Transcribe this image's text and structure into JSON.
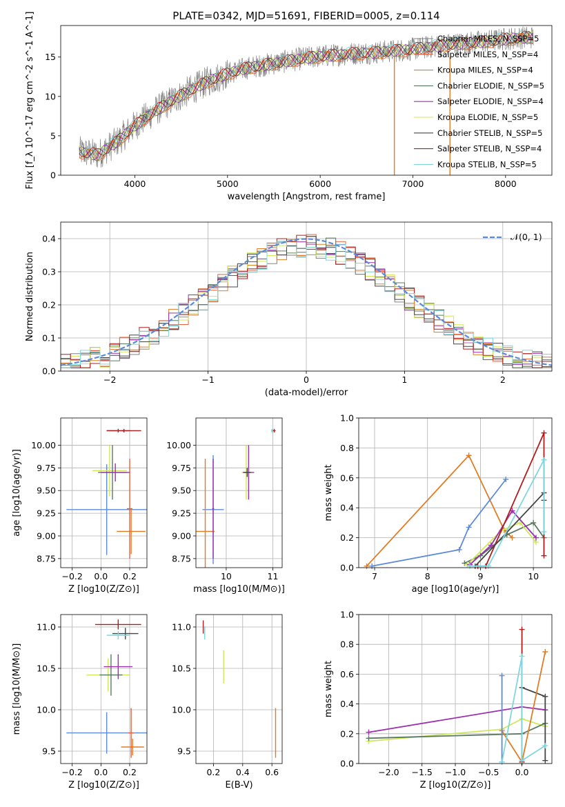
{
  "page_title": "PLATE=0342, MJD=51691, FIBERID=0005, z=0.114",
  "colors": {
    "chabrier_miles": "#808080",
    "salpeter_miles": "#e8603a",
    "kroupa_miles": "#e07b23",
    "chabrier_elodie": "#5a7a60",
    "salpeter_elodie": "#9b2fae",
    "kroupa_elodie": "#cfe85a",
    "chabrier_stelib": "#444444",
    "salpeter_stelib": "#b01c1c",
    "kroupa_stelib": "#7fd6dc",
    "normal": "#5b8ad8",
    "blue_model": "#5b8ad8"
  },
  "chart_data": [
    {
      "id": "spectrum",
      "type": "line",
      "title": "PLATE=0342, MJD=51691, FIBERID=0005, z=0.114",
      "xlabel": "wavelength [Angstrom, rest frame]",
      "ylabel": "Flux [f_λ 10^-17 erg cm^-2 s^-1 A^-1]",
      "xlim": [
        3200,
        8500
      ],
      "ylim": [
        0,
        19
      ],
      "xticks": [
        "4000",
        "5000",
        "6000",
        "7000",
        "8000"
      ],
      "yticks": [
        "0",
        "5",
        "10",
        "15"
      ],
      "legend_position": "right",
      "legend": [
        {
          "name": "Chabrier MILES, N_SSP=5",
          "color_key": "chabrier_miles"
        },
        {
          "name": "Salpeter MILES, N_SSP=4",
          "color_key": "salpeter_miles"
        },
        {
          "name": "Kroupa MILES, N_SSP=4",
          "color_key": "kroupa_miles"
        },
        {
          "name": "Chabrier ELODIE, N_SSP=5",
          "color_key": "chabrier_elodie"
        },
        {
          "name": "Salpeter ELODIE, N_SSP=4",
          "color_key": "salpeter_elodie"
        },
        {
          "name": "Kroupa ELODIE, N_SSP=5",
          "color_key": "kroupa_elodie"
        },
        {
          "name": "Chabrier STELIB, N_SSP=5",
          "color_key": "chabrier_stelib"
        },
        {
          "name": "Salpeter STELIB, N_SSP=4",
          "color_key": "salpeter_stelib"
        },
        {
          "name": "Kroupa STELIB, N_SSP=5",
          "color_key": "kroupa_stelib"
        }
      ],
      "continuum": {
        "x": [
          3400,
          3600,
          3800,
          4000,
          4200,
          4400,
          4600,
          4800,
          5000,
          5200,
          5400,
          5600,
          5800,
          6000,
          6200,
          6400,
          6600,
          6800,
          7000,
          7200,
          7400,
          7600,
          7800,
          8000,
          8200
        ],
        "y": [
          3.0,
          2.6,
          4.2,
          6.3,
          8.0,
          9.5,
          10.8,
          12.0,
          12.9,
          13.6,
          14.0,
          14.4,
          14.8,
          15.1,
          15.3,
          15.5,
          15.6,
          15.8,
          16.0,
          16.3,
          16.6,
          16.8,
          17.0,
          17.3,
          17.5
        ]
      },
      "spikes": [
        {
          "x": 6800,
          "y_low": 0
        },
        {
          "x": 7400,
          "y_low": 0
        }
      ]
    },
    {
      "id": "residuals",
      "type": "line",
      "xlabel": "(data-model)/error",
      "ylabel": "Normed distribution",
      "xlim": [
        -2.5,
        2.5
      ],
      "ylim": [
        0,
        0.45
      ],
      "xticks": [
        "−2",
        "−1",
        "0",
        "1",
        "2"
      ],
      "yticks": [
        "0.0",
        "0.1",
        "0.2",
        "0.3",
        "0.4"
      ],
      "legend_position": "top-right",
      "legend": [
        {
          "name": "𝒩(0, 1)",
          "color_key": "normal"
        }
      ],
      "bin_width": 0.1
    },
    {
      "id": "age_vs_Z",
      "type": "scatter",
      "xlabel": "Z [log10(Z/Z⊙)]",
      "ylabel": "age  [log10(age/yr)]",
      "xlim": [
        -0.28,
        0.32
      ],
      "ylim": [
        8.65,
        10.3
      ],
      "xticks": [
        "−0.2",
        "0.0",
        "0.2"
      ],
      "yticks": [
        "8.75",
        "9.00",
        "9.25",
        "9.50",
        "9.75",
        "10.00"
      ],
      "points": [
        {
          "x": 0.04,
          "y": 9.29,
          "xerr": 0.28,
          "yerr": 0.5,
          "color_key": "blue_model"
        },
        {
          "x": 0.21,
          "y": 9.05,
          "xerr": 0.1,
          "yerr": 0.25,
          "color_key": "kroupa_miles"
        },
        {
          "x": 0.2,
          "y": 9.3,
          "xerr": 0.02,
          "yerr": 0.55,
          "color_key": "salpeter_miles"
        },
        {
          "x": 0.06,
          "y": 9.72,
          "xerr": 0.12,
          "yerr": 0.28,
          "color_key": "kroupa_elodie"
        },
        {
          "x": 0.08,
          "y": 9.7,
          "xerr": 0.1,
          "yerr": 0.3,
          "color_key": "chabrier_elodie"
        },
        {
          "x": 0.1,
          "y": 9.7,
          "xerr": 0.1,
          "yerr": 0.1,
          "color_key": "salpeter_elodie"
        },
        {
          "x": 0.12,
          "y": 10.16,
          "xerr": 0.08,
          "yerr": 0.02,
          "color_key": "chabrier_stelib"
        },
        {
          "x": 0.15,
          "y": 10.16,
          "xerr": 0.06,
          "yerr": 0.01,
          "color_key": "kroupa_stelib"
        },
        {
          "x": 0.16,
          "y": 10.16,
          "xerr": 0.12,
          "yerr": 0.02,
          "color_key": "salpeter_stelib"
        }
      ]
    },
    {
      "id": "age_vs_mass",
      "type": "scatter",
      "xlabel": "mass [log10(M/M⊙)]",
      "xlim": [
        9.35,
        11.2
      ],
      "ylim": [
        8.65,
        10.3
      ],
      "xticks": [
        "10",
        "11"
      ],
      "yticks": [
        "8.75",
        "9.00",
        "9.25",
        "9.50",
        "9.75",
        "10.00"
      ],
      "points": [
        {
          "x": 9.72,
          "y": 9.29,
          "xerr": 0.23,
          "yerr": 0.6,
          "color_key": "blue_model"
        },
        {
          "x": 9.55,
          "y": 9.05,
          "xerr": 0.2,
          "yerr": 0.8,
          "color_key": "kroupa_miles"
        },
        {
          "x": 9.72,
          "y": 9.3,
          "xerr": 0.02,
          "yerr": 0.55,
          "color_key": "salpeter_elodie"
        },
        {
          "x": 10.43,
          "y": 9.7,
          "xerr": 0.1,
          "yerr": 0.3,
          "color_key": "kroupa_elodie"
        },
        {
          "x": 10.48,
          "y": 9.7,
          "xerr": 0.12,
          "yerr": 0.3,
          "color_key": "salpeter_elodie"
        },
        {
          "x": 10.45,
          "y": 9.7,
          "xerr": 0.08,
          "yerr": 0.05,
          "color_key": "chabrier_stelib"
        },
        {
          "x": 10.98,
          "y": 10.16,
          "xerr": 0.02,
          "yerr": 0.02,
          "color_key": "kroupa_stelib"
        },
        {
          "x": 11.03,
          "y": 10.16,
          "xerr": 0.03,
          "yerr": 0.02,
          "color_key": "salpeter_stelib"
        }
      ]
    },
    {
      "id": "weight_vs_age",
      "type": "line",
      "xlabel": "age  [log10(age/yr)]",
      "ylabel": "mass weight",
      "xlim": [
        6.7,
        10.35
      ],
      "ylim": [
        0,
        1
      ],
      "xticks": [
        "7",
        "8",
        "9",
        "10"
      ],
      "yticks": [
        "0.0",
        "0.2",
        "0.4",
        "0.6",
        "0.8",
        "1.0"
      ],
      "series": [
        {
          "color_key": "kroupa_miles",
          "x": [
            6.85,
            8.78,
            9.45,
            9.6
          ],
          "y": [
            0.01,
            0.75,
            0.25,
            0.2
          ]
        },
        {
          "color_key": "blue_model",
          "x": [
            6.95,
            8.6,
            8.78,
            9.48
          ],
          "y": [
            0.01,
            0.12,
            0.27,
            0.59
          ]
        },
        {
          "color_key": "chabrier_elodie",
          "x": [
            8.7,
            9.0,
            9.5,
            10.0,
            10.2
          ],
          "y": [
            0.03,
            0.08,
            0.22,
            0.3,
            0.2
          ]
        },
        {
          "color_key": "kroupa_elodie",
          "x": [
            8.75,
            9.4,
            9.75,
            10.05
          ],
          "y": [
            0.02,
            0.25,
            0.3,
            0.17
          ]
        },
        {
          "color_key": "salpeter_elodie",
          "x": [
            8.8,
            9.2,
            9.6,
            10.05
          ],
          "y": [
            0.02,
            0.15,
            0.38,
            0.2
          ]
        },
        {
          "color_key": "salpeter_stelib",
          "x": [
            8.95,
            9.1,
            10.2,
            10.2
          ],
          "y": [
            0.01,
            0.01,
            0.9,
            0.08
          ]
        },
        {
          "color_key": "chabrier_stelib",
          "x": [
            8.9,
            10.2,
            10.2
          ],
          "y": [
            0.01,
            0.5,
            0.45
          ]
        },
        {
          "color_key": "kroupa_stelib",
          "x": [
            8.8,
            9.15,
            10.2,
            10.2
          ],
          "y": [
            0.01,
            0.01,
            0.72,
            0.24
          ]
        }
      ]
    },
    {
      "id": "mass_vs_Z",
      "type": "scatter",
      "xlabel": "Z [log10(Z/Z⊙)]",
      "ylabel": "mass [log10(M/M⊙)]",
      "xlim": [
        -0.28,
        0.32
      ],
      "ylim": [
        9.35,
        11.15
      ],
      "xticks": [
        "−0.2",
        "0.0",
        "0.2"
      ],
      "yticks": [
        "9.5",
        "10.0",
        "10.5",
        "11.0"
      ],
      "points": [
        {
          "x": 0.04,
          "y": 9.72,
          "xerr": 0.28,
          "yerr": 0.25,
          "color_key": "blue_model"
        },
        {
          "x": 0.22,
          "y": 9.55,
          "xerr": 0.08,
          "yerr": 0.1,
          "color_key": "kroupa_miles"
        },
        {
          "x": 0.21,
          "y": 9.72,
          "xerr": 0.02,
          "yerr": 0.3,
          "color_key": "salpeter_miles"
        },
        {
          "x": 0.05,
          "y": 10.42,
          "xerr": 0.15,
          "yerr": 0.2,
          "color_key": "kroupa_elodie"
        },
        {
          "x": 0.07,
          "y": 10.42,
          "xerr": 0.08,
          "yerr": 0.25,
          "color_key": "chabrier_elodie"
        },
        {
          "x": 0.12,
          "y": 10.52,
          "xerr": 0.1,
          "yerr": 0.15,
          "color_key": "salpeter_elodie"
        },
        {
          "x": 0.17,
          "y": 10.92,
          "xerr": 0.09,
          "yerr": 0.07,
          "color_key": "chabrier_stelib"
        },
        {
          "x": 0.12,
          "y": 10.9,
          "xerr": 0.08,
          "yerr": 0.05,
          "color_key": "kroupa_stelib"
        },
        {
          "x": 0.12,
          "y": 11.03,
          "xerr": 0.16,
          "yerr": 0.06,
          "color_key": "salpeter_stelib"
        }
      ]
    },
    {
      "id": "mass_vs_ebv",
      "type": "scatter",
      "xlabel": "E(B-V)",
      "xlim": [
        0.08,
        0.67
      ],
      "ylim": [
        9.35,
        11.15
      ],
      "xticks": [
        "0.2",
        "0.4",
        "0.6"
      ],
      "yticks": [
        "9.5",
        "10.0",
        "10.5",
        "11.0"
      ],
      "points": [
        {
          "x": 0.625,
          "y": 9.72,
          "xerr": 0.0,
          "yerr": 0.3,
          "color_key": "kroupa_miles"
        },
        {
          "x": 0.27,
          "y": 10.52,
          "xerr": 0.0,
          "yerr": 0.2,
          "color_key": "kroupa_elodie"
        },
        {
          "x": 0.14,
          "y": 10.93,
          "xerr": 0.0,
          "yerr": 0.08,
          "color_key": "kroupa_stelib"
        },
        {
          "x": 0.13,
          "y": 11.0,
          "xerr": 0.0,
          "yerr": 0.08,
          "color_key": "salpeter_stelib"
        }
      ]
    },
    {
      "id": "weight_vs_Z",
      "type": "line",
      "xlabel": "Z [log10(Z/Z⊙)]",
      "ylabel": "mass weight",
      "xlim": [
        -2.45,
        0.45
      ],
      "ylim": [
        0,
        1
      ],
      "xticks": [
        "−2.0",
        "−1.5",
        "−1.0",
        "−0.5",
        "0.0"
      ],
      "yticks": [
        "0.0",
        "0.2",
        "0.4",
        "0.6",
        "0.8",
        "1.0"
      ],
      "series": [
        {
          "color_key": "salpeter_elodie",
          "x": [
            -2.3,
            0.0,
            0.35
          ],
          "y": [
            0.21,
            0.38,
            0.36
          ]
        },
        {
          "color_key": "kroupa_elodie",
          "x": [
            -2.3,
            -0.3,
            0.0,
            0.35
          ],
          "y": [
            0.15,
            0.23,
            0.3,
            0.25
          ]
        },
        {
          "color_key": "chabrier_elodie",
          "x": [
            -2.3,
            0.0,
            0.35
          ],
          "y": [
            0.17,
            0.2,
            0.27
          ]
        },
        {
          "color_key": "chabrier_stelib",
          "x": [
            0.0,
            0.35,
            0.35
          ],
          "y": [
            0.51,
            0.45,
            0.02
          ]
        },
        {
          "color_key": "kroupa_miles",
          "x": [
            -0.3,
            0.0,
            0.35
          ],
          "y": [
            0.22,
            0.01,
            0.75
          ]
        },
        {
          "color_key": "blue_model",
          "x": [
            -0.3,
            -0.3
          ],
          "y": [
            0.59,
            0.01
          ]
        },
        {
          "color_key": "salpeter_stelib",
          "x": [
            0.0,
            0.0
          ],
          "y": [
            0.9,
            0.01
          ]
        },
        {
          "color_key": "kroupa_stelib",
          "x": [
            -0.3,
            0.0,
            0.0,
            0.35
          ],
          "y": [
            0.01,
            0.72,
            0.02,
            0.12
          ]
        }
      ]
    }
  ]
}
